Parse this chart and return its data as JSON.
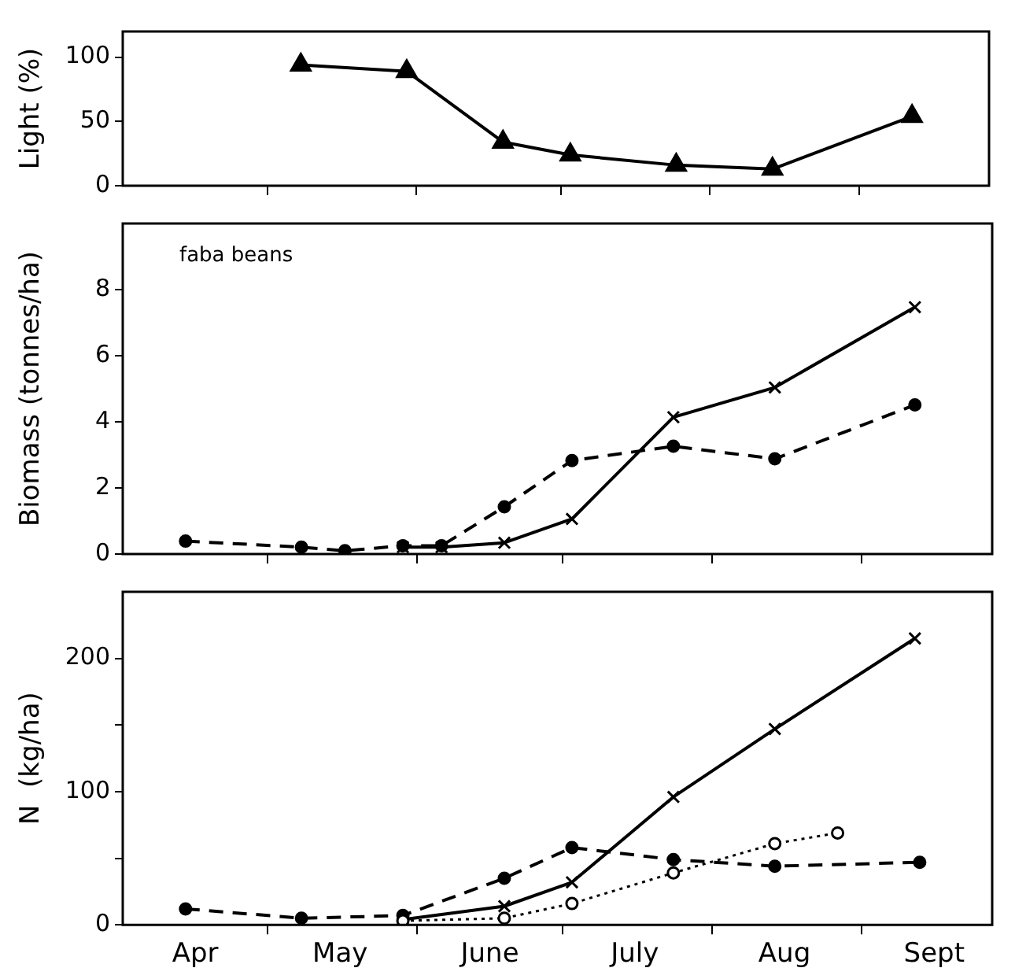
{
  "chart_data": [
    {
      "type": "line",
      "ylabel": "Light (%)",
      "xlim": [
        "--04-01",
        "--09-28"
      ],
      "xticks": [
        {
          "value": "--05-01",
          "label": null
        },
        {
          "value": "--06-01",
          "label": null
        },
        {
          "value": "--07-01",
          "label": null
        },
        {
          "value": "--08-01",
          "label": null
        },
        {
          "value": "--09-01",
          "label": null
        }
      ],
      "ylim": [
        0,
        120
      ],
      "yticks": [
        0,
        50,
        100
      ],
      "tick_labels": "y",
      "grid": false,
      "legend": false,
      "series": [
        {
          "color": "#000000",
          "marker": "triangle",
          "line_style": "solid",
          "x": [
            "--05-08",
            "--05-30",
            "--06-19",
            "--07-03",
            "--07-25",
            "--08-14",
            "--09-12"
          ],
          "values": [
            94,
            89,
            34,
            24,
            16,
            13,
            54
          ]
        }
      ]
    },
    {
      "type": "line",
      "ylabel": "Biomass (tonnes/ha)",
      "annotations": [
        "faba beans"
      ],
      "xlim": [
        "--04-01",
        "--09-28"
      ],
      "xticks": [
        {
          "value": "--05-01",
          "label": null
        },
        {
          "value": "--06-01",
          "label": null
        },
        {
          "value": "--07-01",
          "label": null
        },
        {
          "value": "--08-01",
          "label": null
        },
        {
          "value": "--09-01",
          "label": null
        }
      ],
      "ylim": [
        0,
        10
      ],
      "yticks": [
        0,
        2,
        4,
        6,
        8
      ],
      "tick_labels": "y",
      "grid": false,
      "legend": false,
      "series": [
        {
          "color": "#000000",
          "marker": "circle",
          "line_style": "dashed",
          "x": [
            "--04-14",
            "--05-08",
            "--05-17",
            "--05-29",
            "--06-06",
            "--06-19",
            "--07-03",
            "--07-24",
            "--08-14",
            "--09-12"
          ],
          "values": [
            0.39,
            0.21,
            0.1,
            0.25,
            0.25,
            1.43,
            2.83,
            3.26,
            2.88,
            4.51
          ]
        },
        {
          "color": "#000000",
          "marker": "cross",
          "line_style": "solid",
          "x": [
            "--05-29",
            "--06-06",
            "--06-19",
            "--07-03",
            "--07-24",
            "--08-14",
            "--09-12"
          ],
          "values": [
            0.21,
            0.21,
            0.34,
            1.06,
            4.14,
            5.04,
            7.47
          ]
        }
      ]
    },
    {
      "type": "line",
      "ylabel": "N  (kg/ha)",
      "xlim": [
        "--04-01",
        "--09-28"
      ],
      "xticks": [
        {
          "value": "--04-16",
          "label": "Apr"
        },
        {
          "value": "--05-01",
          "label": null
        },
        {
          "value": "--05-16",
          "label": "May"
        },
        {
          "value": "--06-01",
          "label": null
        },
        {
          "value": "--06-16",
          "label": "June"
        },
        {
          "value": "--07-01",
          "label": null
        },
        {
          "value": "--07-16",
          "label": "July"
        },
        {
          "value": "--08-01",
          "label": null
        },
        {
          "value": "--08-16",
          "label": "Aug"
        },
        {
          "value": "--09-01",
          "label": null
        },
        {
          "value": "--09-16",
          "label": "Sept"
        }
      ],
      "ylim": [
        0,
        250
      ],
      "yticks": [
        0,
        {
          "value": 50,
          "label": null
        },
        100,
        {
          "value": 150,
          "label": null
        },
        200
      ],
      "grid": false,
      "legend": false,
      "series": [
        {
          "color": "#000000",
          "marker": "circle",
          "line_style": "dashed",
          "x": [
            "--04-14",
            "--05-08",
            "--05-29",
            "--06-19",
            "--07-03",
            "--07-24",
            "--08-14",
            "--09-13"
          ],
          "values": [
            12,
            5,
            7,
            35,
            58,
            49,
            44,
            47
          ]
        },
        {
          "color": "#000000",
          "marker": "cross",
          "line_style": "solid",
          "x": [
            "--05-29",
            "--06-19",
            "--07-03",
            "--07-24",
            "--08-14",
            "--09-12"
          ],
          "values": [
            4,
            14,
            32,
            96,
            147,
            215
          ]
        },
        {
          "color": "#000000",
          "marker": "circle",
          "line_style": "dotted",
          "x": [
            "--05-29",
            "--06-19",
            "--07-03",
            "--07-24",
            "--08-14",
            "--08-27"
          ],
          "values": [
            3,
            5,
            16,
            39,
            61,
            69
          ]
        }
      ]
    }
  ]
}
